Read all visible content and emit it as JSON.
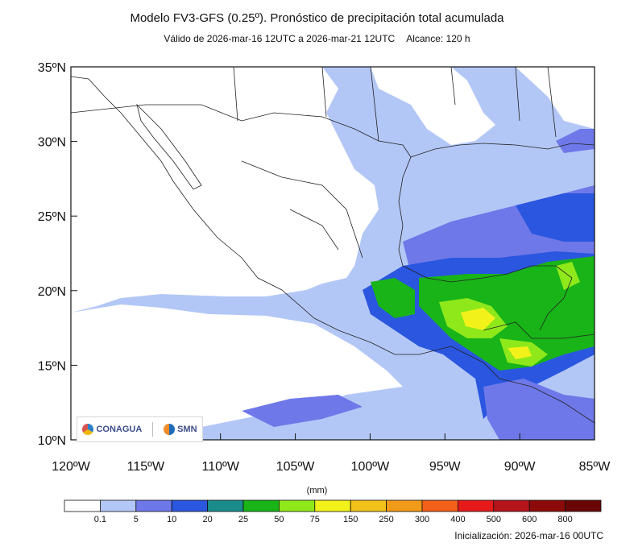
{
  "header": {
    "title": "Modelo FV3-GFS (0.25º). Pronóstico de precipitación total acumulada",
    "valid": "Válido de 2026-mar-16 12UTC a 2026-mar-21 12UTC",
    "range": "Alcance: 120 h"
  },
  "axes": {
    "lat_labels": [
      "35ºN",
      "30ºN",
      "25ºN",
      "20ºN",
      "15ºN",
      "10ºN"
    ],
    "lon_labels": [
      "120ºW",
      "115ºW",
      "110ºW",
      "105ºW",
      "100ºW",
      "95ºW",
      "90ºW",
      "85ºW"
    ]
  },
  "colorbar": {
    "units": "(mm)",
    "ticks": [
      "0.1",
      "5",
      "10",
      "20",
      "25",
      "50",
      "75",
      "150",
      "250",
      "300",
      "400",
      "500",
      "600",
      "800"
    ],
    "colors": [
      "#ffffff",
      "#b3c7f7",
      "#6f78e8",
      "#2a56e0",
      "#1a8c8c",
      "#18b418",
      "#8ee81a",
      "#f2f21a",
      "#f2c21a",
      "#f29a1a",
      "#f2601a",
      "#e61a1a",
      "#b4141a",
      "#8c0a0a",
      "#6a0606"
    ]
  },
  "logos": {
    "conagua": "CONAGUA",
    "smn": "SMN"
  },
  "footer": {
    "init": "Inicialización: 2026-mar-16 00UTC"
  }
}
